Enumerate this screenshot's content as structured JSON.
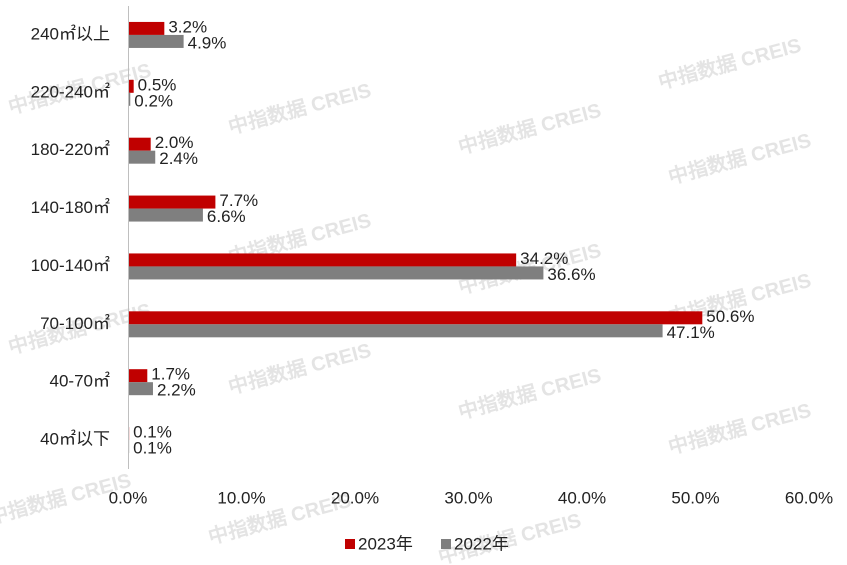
{
  "chart_data": {
    "type": "hbar",
    "categories": [
      "240㎡以上",
      "220-240㎡",
      "180-220㎡",
      "140-180㎡",
      "100-140㎡",
      "70-100㎡",
      "40-70㎡",
      "40㎡以下"
    ],
    "series": [
      {
        "name": "2023年",
        "color": "#c00000",
        "values": [
          3.2,
          0.5,
          2.0,
          7.7,
          34.2,
          50.6,
          1.7,
          0.1
        ],
        "value_labels": [
          "3.2%",
          "0.5%",
          "2.0%",
          "7.7%",
          "34.2%",
          "50.6%",
          "1.7%",
          "0.1%"
        ]
      },
      {
        "name": "2022年",
        "color": "#7f7f7f",
        "values": [
          4.9,
          0.2,
          2.4,
          6.6,
          36.6,
          47.1,
          2.2,
          0.1
        ],
        "value_labels": [
          "4.9%",
          "0.2%",
          "2.4%",
          "6.6%",
          "36.6%",
          "47.1%",
          "2.2%",
          "0.1%"
        ]
      }
    ],
    "xlim": [
      0,
      60
    ],
    "xticks": [
      {
        "value": 0,
        "label": "0.0%"
      },
      {
        "value": 10,
        "label": "10.0%"
      },
      {
        "value": 20,
        "label": "20.0%"
      },
      {
        "value": 30,
        "label": "30.0%"
      },
      {
        "value": 40,
        "label": "40.0%"
      },
      {
        "value": 50,
        "label": "50.0%"
      },
      {
        "value": 60,
        "label": "60.0%"
      }
    ],
    "legend": "bottom",
    "watermark": "中指数据 CREIS"
  }
}
